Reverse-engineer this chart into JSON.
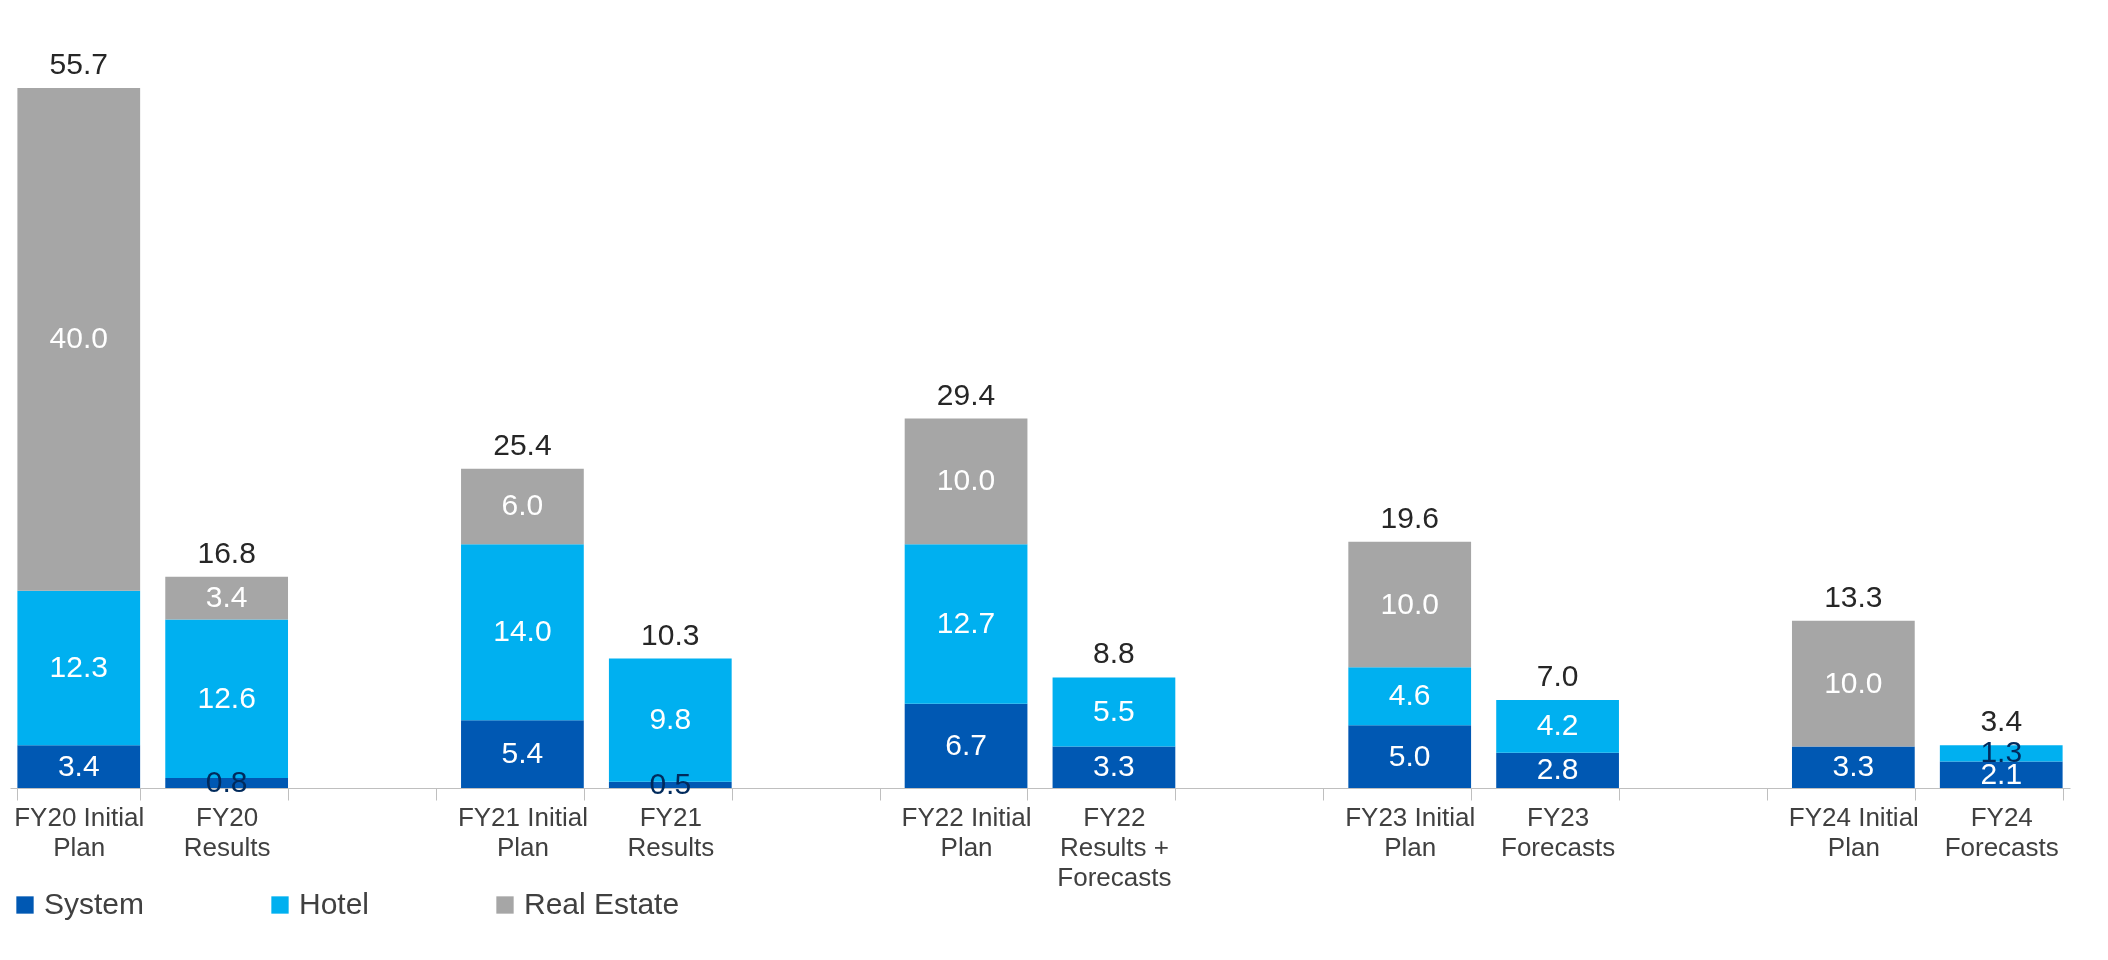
{
  "chart_data": {
    "type": "bar",
    "stacked": true,
    "legend": "bottom",
    "grid": false,
    "categories": [
      "FY20 Initial\nPlan",
      "FY20\nResults",
      null,
      "FY21 Initial\nPlan",
      "FY21\nResults",
      null,
      "FY22 Initial\nPlan",
      "FY22\nResults +\nForecasts",
      null,
      "FY23 Initial\nPlan",
      "FY23\nForecasts",
      null,
      "FY24 Initial\nPlan",
      "FY24\nForecasts"
    ],
    "series": [
      {
        "name": "System",
        "color": "#0058b3",
        "values": [
          3.4,
          0.8,
          null,
          5.4,
          0.5,
          null,
          6.7,
          3.3,
          null,
          5.0,
          2.8,
          null,
          3.3,
          2.1
        ],
        "value_labels": [
          "3.4",
          "0.8",
          null,
          "5.4",
          "0.5",
          null,
          "6.7",
          "3.3",
          null,
          "5.0",
          "2.8",
          null,
          "3.3",
          "2.1"
        ]
      },
      {
        "name": "Hotel",
        "color": "#00b0f0",
        "values": [
          12.3,
          12.6,
          null,
          14.0,
          9.8,
          null,
          12.7,
          5.5,
          null,
          4.6,
          4.2,
          null,
          null,
          1.3
        ],
        "value_labels": [
          "12.3",
          "12.6",
          null,
          "14.0",
          "9.8",
          null,
          "12.7",
          "5.5",
          null,
          "4.6",
          "4.2",
          null,
          null,
          "1.3"
        ]
      },
      {
        "name": "Real Estate",
        "color": "#a6a6a6",
        "values": [
          40.0,
          3.4,
          null,
          6.0,
          null,
          null,
          10.0,
          null,
          null,
          10.0,
          null,
          null,
          10.0,
          null
        ],
        "value_labels": [
          "40.0",
          "3.4",
          null,
          "6.0",
          null,
          null,
          "10.0",
          null,
          null,
          "10.0",
          null,
          null,
          "10.0",
          null
        ]
      }
    ],
    "totals": [
      "55.7",
      "16.8",
      null,
      "25.4",
      "10.3",
      null,
      "29.4",
      "8.8",
      null,
      "19.6",
      "7.0",
      null,
      "13.3",
      "3.4"
    ]
  }
}
